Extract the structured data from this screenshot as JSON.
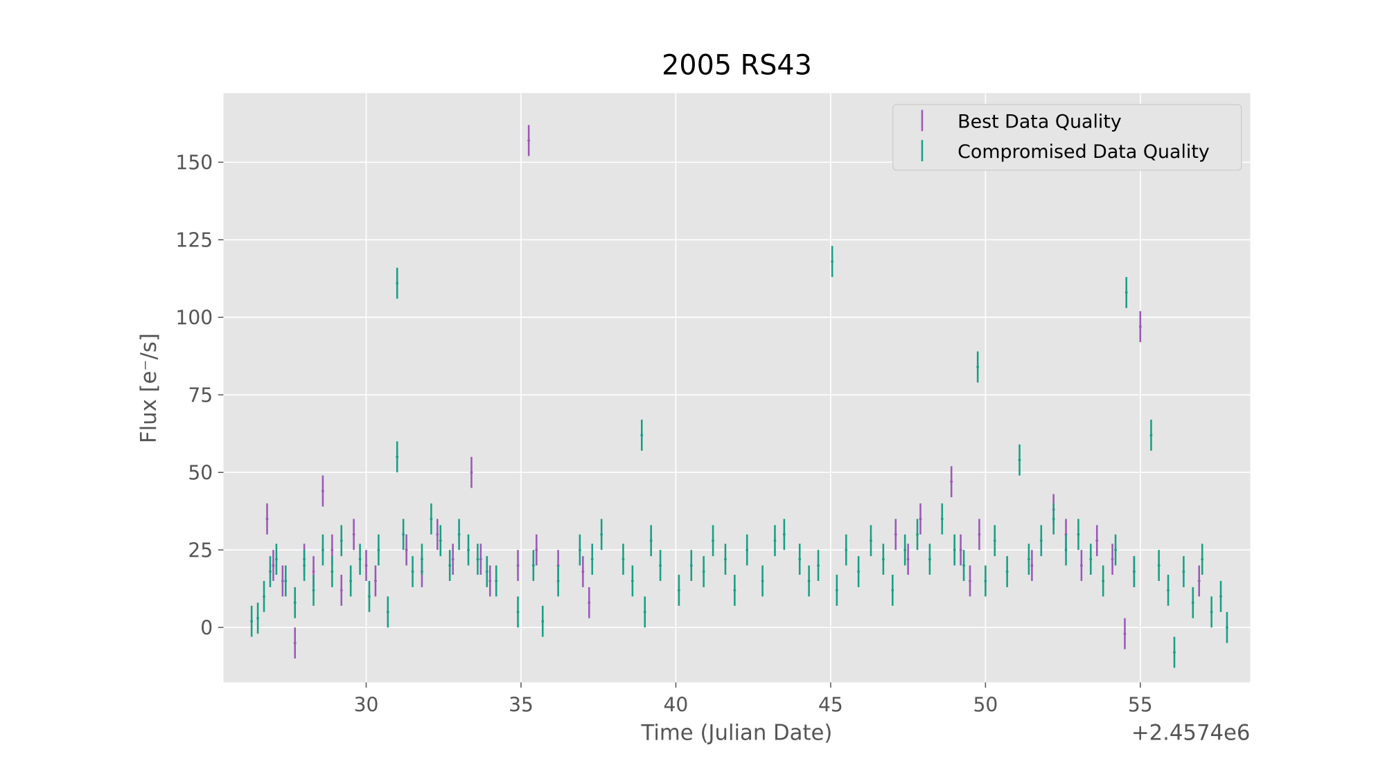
{
  "chart_data": {
    "type": "errorbar",
    "title": "2005 RS43",
    "xlabel": "Time (Julian Date)",
    "ylabel": "Flux [e⁻/s]",
    "x_offset_label": "+2.4574e6",
    "xlim": [
      25.39,
      58.55
    ],
    "ylim": [
      -17.7,
      172.3
    ],
    "xticks": [
      30,
      35,
      40,
      45,
      50,
      55
    ],
    "yticks": [
      0,
      25,
      50,
      75,
      100,
      125,
      150
    ],
    "grid": true,
    "legend": "upper right",
    "series": [
      {
        "name": "Best Data Quality",
        "color": "#9b59b6",
        "error": 5,
        "x": [
          26.8,
          27.0,
          27.3,
          27.7,
          28.0,
          28.3,
          28.6,
          28.9,
          29.2,
          29.6,
          30.0,
          30.3,
          31.3,
          31.8,
          32.3,
          32.8,
          33.4,
          33.7,
          34.0,
          34.9,
          35.25,
          35.5,
          36.2,
          37.0,
          37.2,
          47.1,
          47.5,
          47.9,
          48.9,
          49.2,
          49.5,
          49.8,
          51.5,
          52.2,
          52.6,
          53.1,
          53.6,
          54.1,
          54.5,
          54.8,
          55.0,
          56.9
        ],
        "y": [
          35,
          20,
          15,
          -5,
          22,
          18,
          44,
          25,
          12,
          30,
          20,
          15,
          25,
          18,
          30,
          22,
          50,
          22,
          15,
          20,
          157,
          25,
          20,
          18,
          8,
          30,
          22,
          35,
          47,
          25,
          15,
          30,
          20,
          38,
          30,
          20,
          28,
          22,
          -2,
          18,
          97,
          15
        ]
      },
      {
        "name": "Compromised Data Quality",
        "color": "#16a085",
        "error": 5,
        "x": [
          26.3,
          26.5,
          26.7,
          26.9,
          27.1,
          27.4,
          27.7,
          28.0,
          28.3,
          28.6,
          28.9,
          29.2,
          29.5,
          29.8,
          30.1,
          30.4,
          30.7,
          31.0,
          31.0,
          31.2,
          31.5,
          31.8,
          32.1,
          32.4,
          32.7,
          33.0,
          33.3,
          33.6,
          33.9,
          34.2,
          34.9,
          35.4,
          35.7,
          36.2,
          36.9,
          37.3,
          37.6,
          38.3,
          38.6,
          38.9,
          39.0,
          39.2,
          39.5,
          40.1,
          40.5,
          40.9,
          41.2,
          41.6,
          41.9,
          42.3,
          42.8,
          43.2,
          43.5,
          44.0,
          44.3,
          44.6,
          45.05,
          45.2,
          45.5,
          45.9,
          46.3,
          46.7,
          47.0,
          47.4,
          47.8,
          48.2,
          48.6,
          49.0,
          49.3,
          49.75,
          50.0,
          50.3,
          50.7,
          51.1,
          51.4,
          51.8,
          52.2,
          52.6,
          53.0,
          53.4,
          53.8,
          54.2,
          54.55,
          54.8,
          55.35,
          55.6,
          55.9,
          56.1,
          56.4,
          56.7,
          57.0,
          57.3,
          57.6,
          57.8
        ],
        "y": [
          2,
          3,
          10,
          18,
          22,
          15,
          8,
          20,
          12,
          25,
          18,
          28,
          15,
          22,
          10,
          25,
          5,
          111,
          55,
          30,
          18,
          22,
          35,
          28,
          20,
          30,
          25,
          22,
          18,
          15,
          5,
          20,
          2,
          15,
          25,
          22,
          30,
          22,
          15,
          62,
          5,
          28,
          20,
          12,
          20,
          18,
          28,
          22,
          12,
          25,
          15,
          28,
          30,
          22,
          15,
          20,
          118,
          12,
          25,
          18,
          28,
          22,
          12,
          25,
          30,
          22,
          35,
          25,
          20,
          84,
          15,
          28,
          18,
          54,
          22,
          28,
          35,
          25,
          30,
          22,
          15,
          25,
          108,
          18,
          62,
          20,
          12,
          -8,
          18,
          8,
          22,
          5,
          10,
          0
        ]
      }
    ]
  }
}
